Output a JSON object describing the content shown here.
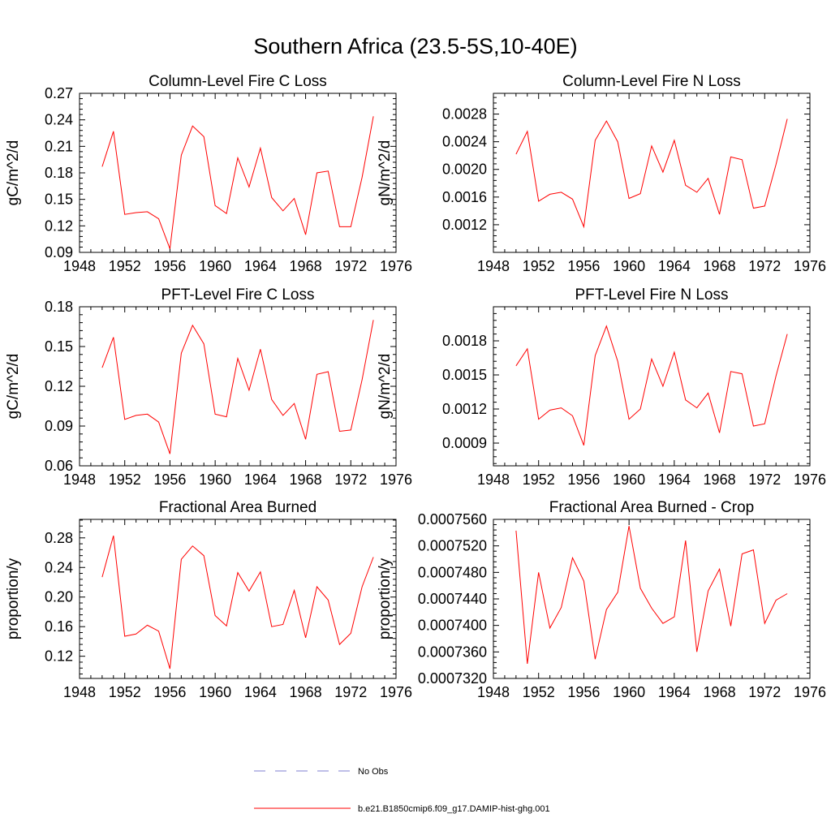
{
  "figure": {
    "title": "Southern Africa (23.5-5S,10-40E)"
  },
  "legend": {
    "entries": [
      {
        "label": "No Obs",
        "color": "#7f7fd0",
        "style": "dashed"
      },
      {
        "label": "b.e21.B1850cmip6.f09_g17.DAMIP-hist-ghg.001",
        "color": "#ff0000",
        "style": "solid"
      }
    ]
  },
  "chart_data": [
    {
      "type": "line",
      "title": "Column-Level Fire C Loss",
      "ylabel": "gC/m^2/d",
      "xlabel": "",
      "xlim": [
        1948,
        1976
      ],
      "ylim": [
        0.09,
        0.27
      ],
      "xticks": [
        "1948",
        "1952",
        "1956",
        "1960",
        "1964",
        "1968",
        "1972",
        "1976"
      ],
      "yticks": [
        "0.09",
        "0.12",
        "0.15",
        "0.18",
        "0.21",
        "0.24",
        "0.27"
      ],
      "x": [
        1950,
        1951,
        1952,
        1953,
        1954,
        1955,
        1956,
        1957,
        1958,
        1959,
        1960,
        1961,
        1962,
        1963,
        1964,
        1965,
        1966,
        1967,
        1968,
        1969,
        1970,
        1971,
        1972,
        1973,
        1974
      ],
      "series": [
        {
          "color": "#ff0000",
          "values": [
            0.187,
            0.227,
            0.133,
            0.135,
            0.136,
            0.128,
            0.094,
            0.2,
            0.233,
            0.221,
            0.143,
            0.134,
            0.197,
            0.164,
            0.208,
            0.152,
            0.137,
            0.151,
            0.11,
            0.18,
            0.182,
            0.119,
            0.119,
            0.175,
            0.244
          ]
        }
      ]
    },
    {
      "type": "line",
      "title": "Column-Level Fire N Loss",
      "ylabel": "gN/m^2/d",
      "xlabel": "",
      "xlim": [
        1948,
        1976
      ],
      "ylim": [
        0.0008,
        0.0031
      ],
      "xticks": [
        "1948",
        "1952",
        "1956",
        "1960",
        "1964",
        "1968",
        "1972",
        "1976"
      ],
      "yticks": [
        "0.0012",
        "0.0016",
        "0.0020",
        "0.0024",
        "0.0028"
      ],
      "x": [
        1950,
        1951,
        1952,
        1953,
        1954,
        1955,
        1956,
        1957,
        1958,
        1959,
        1960,
        1961,
        1962,
        1963,
        1964,
        1965,
        1966,
        1967,
        1968,
        1969,
        1970,
        1971,
        1972,
        1973,
        1974
      ],
      "series": [
        {
          "color": "#ff0000",
          "values": [
            0.00222,
            0.00255,
            0.00154,
            0.00164,
            0.00167,
            0.00157,
            0.00117,
            0.00242,
            0.0027,
            0.0024,
            0.00158,
            0.00165,
            0.00234,
            0.00196,
            0.00242,
            0.00177,
            0.00167,
            0.00187,
            0.00135,
            0.00218,
            0.00214,
            0.00144,
            0.00147,
            0.00207,
            0.00273
          ]
        }
      ]
    },
    {
      "type": "line",
      "title": "PFT-Level Fire C Loss",
      "ylabel": "gC/m^2/d",
      "xlabel": "",
      "xlim": [
        1948,
        1976
      ],
      "ylim": [
        0.06,
        0.18
      ],
      "xticks": [
        "1948",
        "1952",
        "1956",
        "1960",
        "1964",
        "1968",
        "1972",
        "1976"
      ],
      "yticks": [
        "0.06",
        "0.09",
        "0.12",
        "0.15",
        "0.18"
      ],
      "x": [
        1950,
        1951,
        1952,
        1953,
        1954,
        1955,
        1956,
        1957,
        1958,
        1959,
        1960,
        1961,
        1962,
        1963,
        1964,
        1965,
        1966,
        1967,
        1968,
        1969,
        1970,
        1971,
        1972,
        1973,
        1974
      ],
      "series": [
        {
          "color": "#ff0000",
          "values": [
            0.134,
            0.157,
            0.095,
            0.098,
            0.099,
            0.093,
            0.069,
            0.145,
            0.166,
            0.152,
            0.099,
            0.097,
            0.141,
            0.117,
            0.148,
            0.11,
            0.098,
            0.107,
            0.08,
            0.129,
            0.131,
            0.086,
            0.087,
            0.125,
            0.17
          ]
        }
      ]
    },
    {
      "type": "line",
      "title": "PFT-Level Fire N Loss",
      "ylabel": "gN/m^2/d",
      "xlabel": "",
      "xlim": [
        1948,
        1976
      ],
      "ylim": [
        0.0007,
        0.0021
      ],
      "xticks": [
        "1948",
        "1952",
        "1956",
        "1960",
        "1964",
        "1968",
        "1972",
        "1976"
      ],
      "yticks": [
        "0.0009",
        "0.0012",
        "0.0015",
        "0.0018"
      ],
      "x": [
        1950,
        1951,
        1952,
        1953,
        1954,
        1955,
        1956,
        1957,
        1958,
        1959,
        1960,
        1961,
        1962,
        1963,
        1964,
        1965,
        1966,
        1967,
        1968,
        1969,
        1970,
        1971,
        1972,
        1973,
        1974
      ],
      "series": [
        {
          "color": "#ff0000",
          "values": [
            0.00158,
            0.00173,
            0.00111,
            0.00119,
            0.00121,
            0.00114,
            0.00088,
            0.00167,
            0.00193,
            0.00162,
            0.00111,
            0.0012,
            0.00164,
            0.0014,
            0.0017,
            0.00128,
            0.00121,
            0.00134,
            0.00099,
            0.00153,
            0.00151,
            0.00105,
            0.00107,
            0.00149,
            0.00186
          ]
        }
      ]
    },
    {
      "type": "line",
      "title": "Fractional Area Burned",
      "ylabel": "proportion/y",
      "xlabel": "",
      "xlim": [
        1948,
        1976
      ],
      "ylim": [
        0.09,
        0.305
      ],
      "xticks": [
        "1948",
        "1952",
        "1956",
        "1960",
        "1964",
        "1968",
        "1972",
        "1976"
      ],
      "yticks": [
        "0.12",
        "0.16",
        "0.20",
        "0.24",
        "0.28"
      ],
      "x": [
        1950,
        1951,
        1952,
        1953,
        1954,
        1955,
        1956,
        1957,
        1958,
        1959,
        1960,
        1961,
        1962,
        1963,
        1964,
        1965,
        1966,
        1967,
        1968,
        1969,
        1970,
        1971,
        1972,
        1973,
        1974
      ],
      "series": [
        {
          "color": "#ff0000",
          "values": [
            0.227,
            0.283,
            0.147,
            0.15,
            0.162,
            0.154,
            0.103,
            0.251,
            0.269,
            0.256,
            0.175,
            0.161,
            0.233,
            0.208,
            0.234,
            0.16,
            0.163,
            0.209,
            0.145,
            0.214,
            0.196,
            0.136,
            0.151,
            0.214,
            0.254
          ]
        }
      ]
    },
    {
      "type": "line",
      "title": "Fractional Area Burned - Crop",
      "ylabel": "proportion/y",
      "xlabel": "",
      "xlim": [
        1948,
        1976
      ],
      "ylim": [
        0.000732,
        0.000756
      ],
      "xticks": [
        "1948",
        "1952",
        "1956",
        "1960",
        "1964",
        "1968",
        "1972",
        "1976"
      ],
      "yticks": [
        "0.0007320",
        "0.0007360",
        "0.0007400",
        "0.0007440",
        "0.0007480",
        "0.0007520",
        "0.0007560"
      ],
      "x": [
        1950,
        1951,
        1952,
        1953,
        1954,
        1955,
        1956,
        1957,
        1958,
        1959,
        1960,
        1961,
        1962,
        1963,
        1964,
        1965,
        1966,
        1967,
        1968,
        1969,
        1970,
        1971,
        1972,
        1973,
        1974
      ],
      "series": [
        {
          "color": "#ff0000",
          "values": [
            0.0007543,
            0.0007342,
            0.000748,
            0.0007396,
            0.0007427,
            0.0007502,
            0.0007467,
            0.0007349,
            0.0007424,
            0.000745,
            0.000755,
            0.0007456,
            0.0007426,
            0.0007403,
            0.0007413,
            0.0007528,
            0.000736,
            0.0007452,
            0.0007485,
            0.0007399,
            0.0007508,
            0.0007514,
            0.0007403,
            0.0007438,
            0.0007448
          ]
        }
      ]
    }
  ]
}
